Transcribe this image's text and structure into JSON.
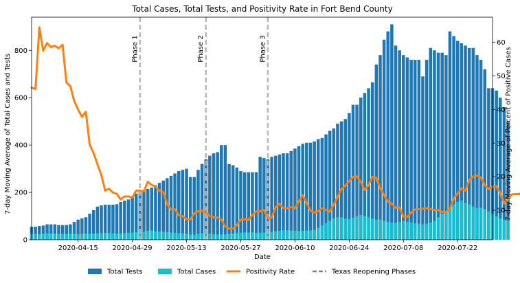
{
  "chart_data": {
    "type": "bar",
    "title": "Total Cases, Total Tests, and Positivity Rate in Fort Bend County",
    "xlabel": "Date",
    "ylabel_left": "7-day Moving Average of Total Cases and Tests",
    "ylabel_right": "7-day Moving Average of Percent of Positive Cases",
    "x_start": "2020-04-03",
    "x_end": "2020-07-31",
    "ylim_left": [
      0,
      940
    ],
    "ylim_right": [
      1.2,
      67.5
    ],
    "left_ticks": [
      0,
      200,
      400,
      600,
      800
    ],
    "right_ticks": [
      10,
      20,
      30,
      40,
      50,
      60
    ],
    "x_ticks": [
      "2020-04-15",
      "2020-04-29",
      "2020-05-13",
      "2020-05-27",
      "2020-06-10",
      "2020-06-24",
      "2020-07-08",
      "2020-07-22"
    ],
    "grid": false,
    "legend_position": "bottom-center",
    "legend": [
      {
        "label": "Total Tests",
        "kind": "bar",
        "color": "#1f77b4"
      },
      {
        "label": "Total Cases",
        "kind": "bar",
        "color": "#17becf"
      },
      {
        "label": "Positivity Rate",
        "kind": "line",
        "color": "#ff7f0e"
      },
      {
        "label": "Texas Reopening Phases",
        "kind": "dashed",
        "color": "#808080"
      }
    ],
    "phases": [
      {
        "label": "Phase 1",
        "date": "2020-05-01"
      },
      {
        "label": "Phase 2",
        "date": "2020-05-18"
      },
      {
        "label": "Phase 3",
        "date": "2020-06-03"
      }
    ],
    "series": [
      {
        "name": "Total Tests",
        "color": "#1f77b4",
        "values": [
          55,
          55,
          58,
          60,
          65,
          65,
          65,
          62,
          62,
          62,
          65,
          75,
          85,
          90,
          95,
          110,
          125,
          140,
          145,
          148,
          148,
          148,
          150,
          160,
          165,
          170,
          180,
          195,
          200,
          210,
          215,
          220,
          230,
          240,
          250,
          260,
          270,
          280,
          290,
          295,
          300,
          265,
          265,
          295,
          320,
          340,
          355,
          365,
          370,
          400,
          400,
          320,
          315,
          305,
          290,
          285,
          285,
          285,
          285,
          350,
          345,
          340,
          350,
          355,
          360,
          365,
          365,
          375,
          385,
          395,
          405,
          410,
          410,
          415,
          425,
          430,
          445,
          460,
          470,
          490,
          500,
          510,
          535,
          570,
          570,
          600,
          620,
          640,
          665,
          740,
          780,
          845,
          880,
          910,
          820,
          800,
          780,
          770,
          760,
          760,
          760,
          690,
          760,
          810,
          800,
          790,
          790,
          780,
          880,
          860,
          840,
          830,
          820,
          810,
          810,
          780,
          760,
          720,
          640,
          640,
          630,
          600,
          560,
          500
        ]
      },
      {
        "name": "Total Cases",
        "color": "#17becf",
        "values": [
          25,
          25,
          24,
          26,
          27,
          26,
          26,
          25,
          25,
          25,
          26,
          25,
          24,
          25,
          26,
          25,
          26,
          27,
          28,
          28,
          28,
          27,
          26,
          27,
          28,
          29,
          30,
          31,
          32,
          34,
          38,
          39,
          36,
          35,
          34,
          32,
          30,
          29,
          28,
          27,
          25,
          22,
          22,
          25,
          27,
          28,
          26,
          24,
          22,
          22,
          22,
          25,
          26,
          28,
          30,
          31,
          30,
          31,
          29,
          29,
          30,
          32,
          34,
          36,
          38,
          40,
          40,
          39,
          38,
          37,
          38,
          39,
          40,
          42,
          50,
          60,
          70,
          80,
          90,
          95,
          95,
          90,
          88,
          92,
          100,
          105,
          100,
          95,
          90,
          85,
          85,
          80,
          75,
          73,
          72,
          75,
          78,
          76,
          73,
          70,
          68,
          65,
          68,
          72,
          80,
          95,
          110,
          120,
          125,
          150,
          160,
          165,
          155,
          150,
          140,
          135,
          135,
          130,
          120,
          110,
          100,
          90,
          85,
          80
        ]
      },
      {
        "name": "Positivity Rate",
        "color": "#ff7f0e",
        "values": [
          46.5,
          46.1,
          64.5,
          57.5,
          59.8,
          58.6,
          59,
          58.2,
          59.3,
          48,
          47,
          42.5,
          40,
          37.8,
          39.3,
          29.5,
          27,
          23.7,
          20.5,
          15.8,
          16.4,
          15.2,
          14.9,
          13.2,
          14.1,
          14.1,
          13.8,
          15.8,
          15.8,
          15.6,
          18.5,
          17.5,
          17,
          15.8,
          15.4,
          11.8,
          10.2,
          10.3,
          8.5,
          8.2,
          7.3,
          7.3,
          9.1,
          9.7,
          9.8,
          9.5,
          8.2,
          7.9,
          7.8,
          7.2,
          5.1,
          4.5,
          4.5,
          5.6,
          7.2,
          7.3,
          7.1,
          8.6,
          9.6,
          9.7,
          10.1,
          7.5,
          7.8,
          10.9,
          11.9,
          10.6,
          10.6,
          10.9,
          10.6,
          12.6,
          14.5,
          12.2,
          9.9,
          9.3,
          9.7,
          10.6,
          10.1,
          9.6,
          11.6,
          14,
          16.3,
          17.3,
          18.7,
          19.9,
          20.1,
          18.5,
          16,
          17.5,
          20,
          19.6,
          16.5,
          14.5,
          12.5,
          11.9,
          10.7,
          10.8,
          8,
          8,
          9.3,
          10.2,
          10.3,
          10.4,
          10.6,
          10.4,
          10,
          10,
          9.5,
          9.5,
          10.3,
          13.5,
          15,
          16.5,
          15.8,
          19,
          20,
          20.3,
          19.7,
          17.5,
          16.3,
          17,
          17.2,
          15,
          12,
          13.1,
          14.7,
          14.8,
          14.8,
          16.2,
          18
        ]
      }
    ]
  }
}
